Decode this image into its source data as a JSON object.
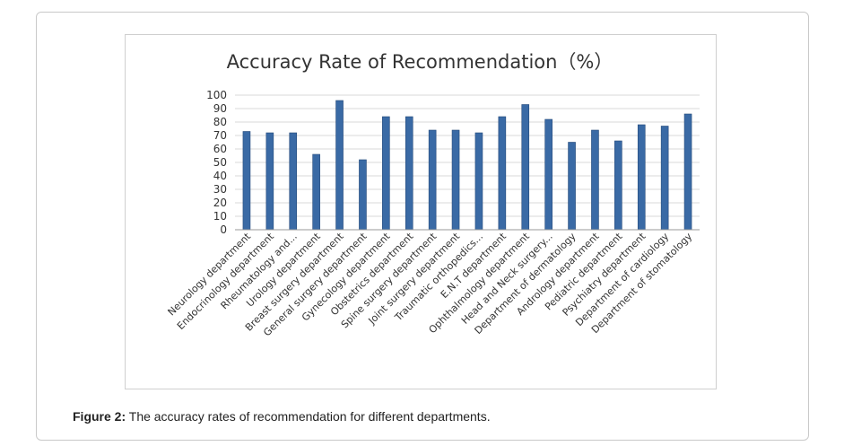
{
  "figure": {
    "caption_label": "Figure 2:",
    "caption_text": " The accuracy rates of recommendation for different departments."
  },
  "chart_data": {
    "type": "bar",
    "title": "Accuracy Rate of Recommendation（%）",
    "xlabel": "",
    "ylabel": "",
    "ylim": [
      0,
      100
    ],
    "yticks": [
      0,
      10,
      20,
      30,
      40,
      50,
      60,
      70,
      80,
      90,
      100
    ],
    "grid": true,
    "bar_color": "#3a6aa5",
    "categories": [
      "Neurology department",
      "Endocrinology department",
      "Rheumatology and...",
      "Urology department",
      "Breast surgery department",
      "General surgery department",
      "Gynecology department",
      "Obstetrics department",
      "Spine surgery department",
      "Joint surgery department",
      "Traumatic orthopedics...",
      "E.N.T department",
      "Ophthalmology department",
      "Head and Neck surgery...",
      "Department of dermatology",
      "Andrology department",
      "Pediatric department",
      "Psychiatry department",
      "Department of cardiology",
      "Department of stomatology"
    ],
    "values": [
      73,
      72,
      72,
      56,
      96,
      52,
      84,
      84,
      74,
      74,
      72,
      84,
      93,
      82,
      65,
      74,
      66,
      78,
      77,
      86
    ]
  }
}
